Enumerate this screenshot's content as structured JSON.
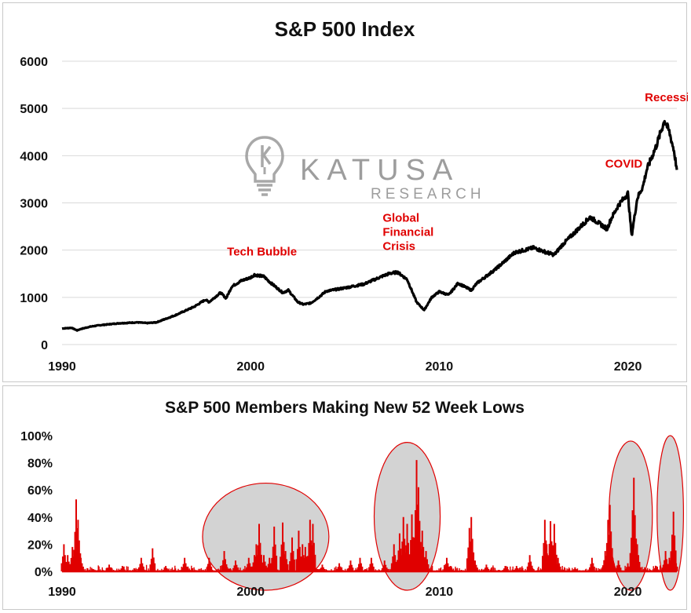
{
  "chart_data": [
    {
      "type": "line",
      "title": "S&P 500 Index",
      "xlabel": "",
      "ylabel": "",
      "xlim": [
        1990,
        2022.6
      ],
      "ylim": [
        0,
        6000
      ],
      "x_ticks": [
        "1990",
        "2000",
        "2010",
        "2020"
      ],
      "y_ticks": [
        "0",
        "1000",
        "2000",
        "3000",
        "4000",
        "5000",
        "6000"
      ],
      "grid": true,
      "series": [
        {
          "color": "#000000",
          "x": [
            1990.0,
            1990.5,
            1990.8,
            1991.0,
            1991.5,
            1992.0,
            1993.0,
            1994.0,
            1994.5,
            1995.0,
            1996.0,
            1997.0,
            1997.6,
            1997.8,
            1998.4,
            1998.7,
            1999.0,
            1999.5,
            2000.0,
            2000.2,
            2000.7,
            2001.0,
            2001.7,
            2002.0,
            2002.5,
            2002.8,
            2003.2,
            2003.6,
            2004.0,
            2005.0,
            2006.0,
            2007.0,
            2007.4,
            2007.8,
            2008.3,
            2008.8,
            2009.2,
            2009.6,
            2010.0,
            2010.5,
            2011.0,
            2011.7,
            2012.0,
            2013.0,
            2014.0,
            2015.0,
            2015.7,
            2016.1,
            2016.5,
            2017.0,
            2018.0,
            2018.9,
            2019.1,
            2019.5,
            2020.0,
            2020.2,
            2020.5,
            2020.8,
            2021.0,
            2021.5,
            2021.95,
            2022.2,
            2022.45,
            2022.6
          ],
          "y": [
            340,
            355,
            300,
            330,
            380,
            410,
            450,
            470,
            455,
            470,
            620,
            800,
            950,
            900,
            1100,
            980,
            1230,
            1350,
            1420,
            1480,
            1440,
            1330,
            1100,
            1150,
            900,
            850,
            880,
            1000,
            1130,
            1200,
            1280,
            1450,
            1510,
            1530,
            1380,
            900,
            730,
            1000,
            1120,
            1050,
            1300,
            1150,
            1300,
            1600,
            1950,
            2050,
            1950,
            1900,
            2100,
            2300,
            2700,
            2450,
            2650,
            2950,
            3200,
            2300,
            3100,
            3350,
            3700,
            4200,
            4750,
            4500,
            4100,
            3700
          ]
        }
      ],
      "annotations": [
        {
          "text": "Tech Bubble",
          "x": 2000.6,
          "y": 1890
        },
        {
          "text": "Global",
          "x": 2007.0,
          "y": 2600
        },
        {
          "text": "Financial",
          "x": 2007.0,
          "y": 2300
        },
        {
          "text": "Crisis",
          "x": 2007.0,
          "y": 2000
        },
        {
          "text": "COVID",
          "x": 2018.8,
          "y": 3750
        },
        {
          "text": "Recession?",
          "x": 2020.9,
          "y": 5150
        }
      ]
    },
    {
      "type": "area",
      "title": "S&P 500 Members Making New 52 Week Lows",
      "xlabel": "",
      "ylabel": "",
      "xlim": [
        1990,
        2022.6
      ],
      "ylim": [
        0,
        1
      ],
      "x_ticks": [
        "1990",
        "2000",
        "2010",
        "2020"
      ],
      "y_ticks": [
        "0%",
        "20%",
        "40%",
        "60%",
        "80%",
        "100%"
      ],
      "grid": false,
      "series": [
        {
          "color": "#e00000",
          "spikes": [
            [
              1990.1,
              0.2
            ],
            [
              1990.3,
              0.12
            ],
            [
              1990.55,
              0.18
            ],
            [
              1990.75,
              0.53
            ],
            [
              1990.85,
              0.38
            ],
            [
              1991.0,
              0.1
            ],
            [
              1992.5,
              0.05
            ],
            [
              1993.2,
              0.04
            ],
            [
              1994.2,
              0.1
            ],
            [
              1994.8,
              0.17
            ],
            [
              1995.5,
              0.04
            ],
            [
              1996.5,
              0.1
            ],
            [
              1997.8,
              0.1
            ],
            [
              1998.6,
              0.15
            ],
            [
              1998.7,
              0.05
            ],
            [
              1999.2,
              0.08
            ],
            [
              1999.9,
              0.1
            ],
            [
              2000.2,
              0.12
            ],
            [
              2000.3,
              0.2
            ],
            [
              2000.45,
              0.35
            ],
            [
              2000.7,
              0.12
            ],
            [
              2001.0,
              0.1
            ],
            [
              2001.25,
              0.33
            ],
            [
              2001.7,
              0.36
            ],
            [
              2001.85,
              0.15
            ],
            [
              2002.2,
              0.25
            ],
            [
              2002.55,
              0.3
            ],
            [
              2002.75,
              0.2
            ],
            [
              2002.9,
              0.18
            ],
            [
              2002.95,
              0.11
            ],
            [
              2003.15,
              0.38
            ],
            [
              2003.3,
              0.35
            ],
            [
              2003.8,
              0.05
            ],
            [
              2004.7,
              0.06
            ],
            [
              2005.3,
              0.08
            ],
            [
              2005.8,
              0.1
            ],
            [
              2006.4,
              0.1
            ],
            [
              2007.1,
              0.08
            ],
            [
              2007.6,
              0.2
            ],
            [
              2007.9,
              0.28
            ],
            [
              2008.1,
              0.4
            ],
            [
              2008.3,
              0.35
            ],
            [
              2008.55,
              0.42
            ],
            [
              2008.7,
              0.25
            ],
            [
              2008.8,
              0.82
            ],
            [
              2008.9,
              0.62
            ],
            [
              2009.1,
              0.3
            ],
            [
              2009.3,
              0.15
            ],
            [
              2010.4,
              0.1
            ],
            [
              2010.6,
              0.04
            ],
            [
              2011.6,
              0.32
            ],
            [
              2011.7,
              0.4
            ],
            [
              2011.9,
              0.08
            ],
            [
              2012.5,
              0.05
            ],
            [
              2013.5,
              0.04
            ],
            [
              2014.1,
              0.04
            ],
            [
              2014.8,
              0.12
            ],
            [
              2015.6,
              0.38
            ],
            [
              2015.7,
              0.2
            ],
            [
              2015.9,
              0.37
            ],
            [
              2016.1,
              0.35
            ],
            [
              2016.3,
              0.1
            ],
            [
              2017.2,
              0.03
            ],
            [
              2018.1,
              0.1
            ],
            [
              2018.8,
              0.15
            ],
            [
              2018.95,
              0.38
            ],
            [
              2019.05,
              0.49
            ],
            [
              2019.2,
              0.1
            ],
            [
              2019.5,
              0.08
            ],
            [
              2020.0,
              0.06
            ],
            [
              2020.25,
              0.45
            ],
            [
              2020.32,
              0.69
            ],
            [
              2020.5,
              0.2
            ],
            [
              2020.9,
              0.03
            ],
            [
              2021.5,
              0.04
            ],
            [
              2021.9,
              0.05
            ],
            [
              2022.0,
              0.15
            ],
            [
              2022.2,
              0.1
            ],
            [
              2022.35,
              0.27
            ],
            [
              2022.42,
              0.44
            ],
            [
              2022.5,
              0.1
            ]
          ]
        }
      ],
      "highlight_regions": [
        {
          "x_center": 2000.8,
          "x_half_width": 3.35,
          "y_low": 0.0,
          "y_high": 0.65
        },
        {
          "x_center": 2008.3,
          "x_half_width": 1.75,
          "y_low": 0.0,
          "y_high": 0.95
        },
        {
          "x_center": 2020.15,
          "x_half_width": 1.15,
          "y_low": 0.0,
          "y_high": 0.96
        },
        {
          "x_center": 2022.25,
          "x_half_width": 0.7,
          "y_low": 0.0,
          "y_high": 1.0
        }
      ]
    }
  ],
  "watermark": {
    "logo_icon": "lightbulb-k-icon",
    "brand": "KATUSA",
    "sub": "RESEARCH"
  }
}
